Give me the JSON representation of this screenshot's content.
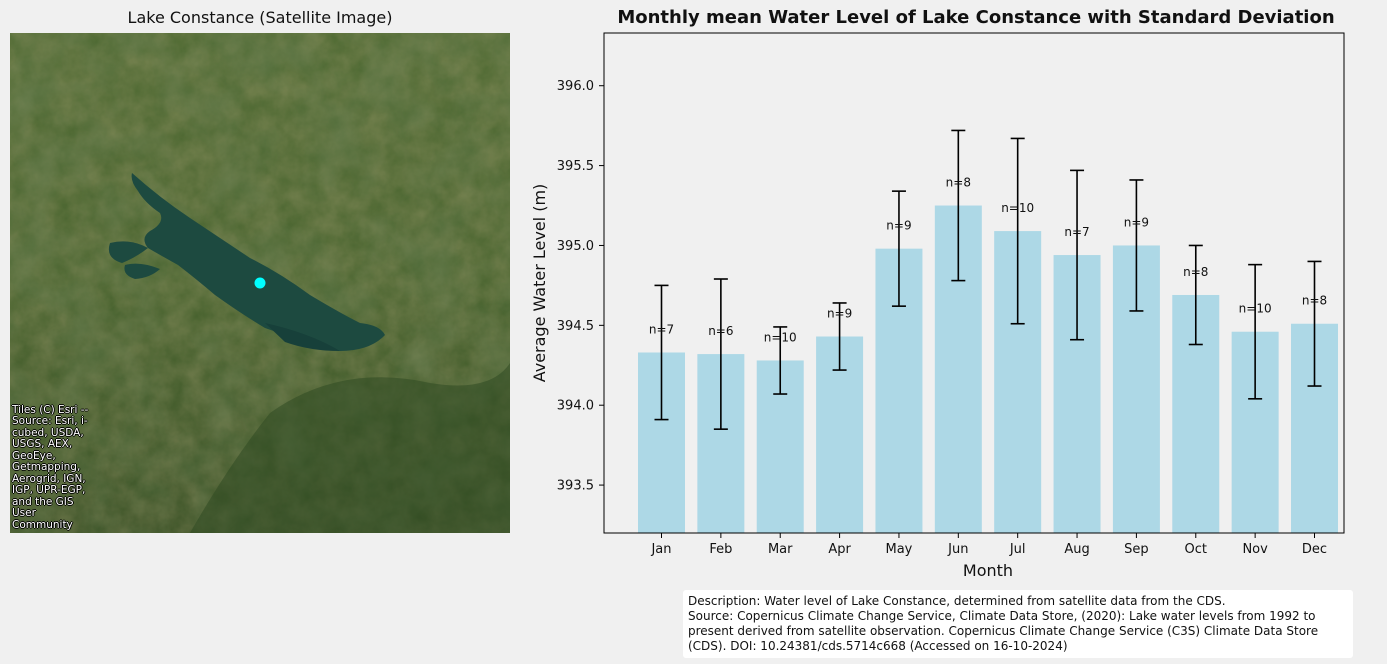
{
  "map": {
    "title": "Lake Constance (Satellite Image)",
    "attribution": "Tiles (C) Esri -- Source: Esri, i-cubed, USDA, USGS, AEX, GeoEye, Getmapping, Aerogrid, IGN, IGP, UPR-EGP, and the GIS User Community",
    "marker_color": "#00ffff"
  },
  "chart_data": {
    "type": "bar",
    "title": "Monthly mean Water Level of Lake Constance with Standard Deviation",
    "xlabel": "Month",
    "ylabel": "Average Water Level (m)",
    "categories": [
      "Jan",
      "Feb",
      "Mar",
      "Apr",
      "May",
      "Jun",
      "Jul",
      "Aug",
      "Sep",
      "Oct",
      "Nov",
      "Dec"
    ],
    "values": [
      394.33,
      394.32,
      394.28,
      394.43,
      394.98,
      395.25,
      395.09,
      394.94,
      395.0,
      394.69,
      394.46,
      394.51
    ],
    "std": [
      0.42,
      0.47,
      0.21,
      0.21,
      0.36,
      0.47,
      0.58,
      0.53,
      0.41,
      0.31,
      0.42,
      0.39
    ],
    "counts": [
      "n=7",
      "n=6",
      "n=10",
      "n=9",
      "n=9",
      "n=8",
      "n=10",
      "n=7",
      "n=9",
      "n=8",
      "n=10",
      "n=8"
    ],
    "yticks": [
      "393.5",
      "394.0",
      "394.5",
      "395.0",
      "395.5",
      "396.0"
    ],
    "ylim": [
      393.2,
      396.33
    ],
    "bar_color": "#add8e6",
    "grid": false
  },
  "description": {
    "line1": "Description: Water level of Lake Constance, determined from satellite data from the CDS.",
    "line2": "Source: Copernicus Climate Change Service, Climate Data Store, (2020): Lake water levels from 1992 to present derived from satellite observation. Copernicus Climate Change Service (C3S) Climate Data Store (CDS). DOI: 10.24381/cds.5714c668 (Accessed on 16-10-2024)"
  }
}
